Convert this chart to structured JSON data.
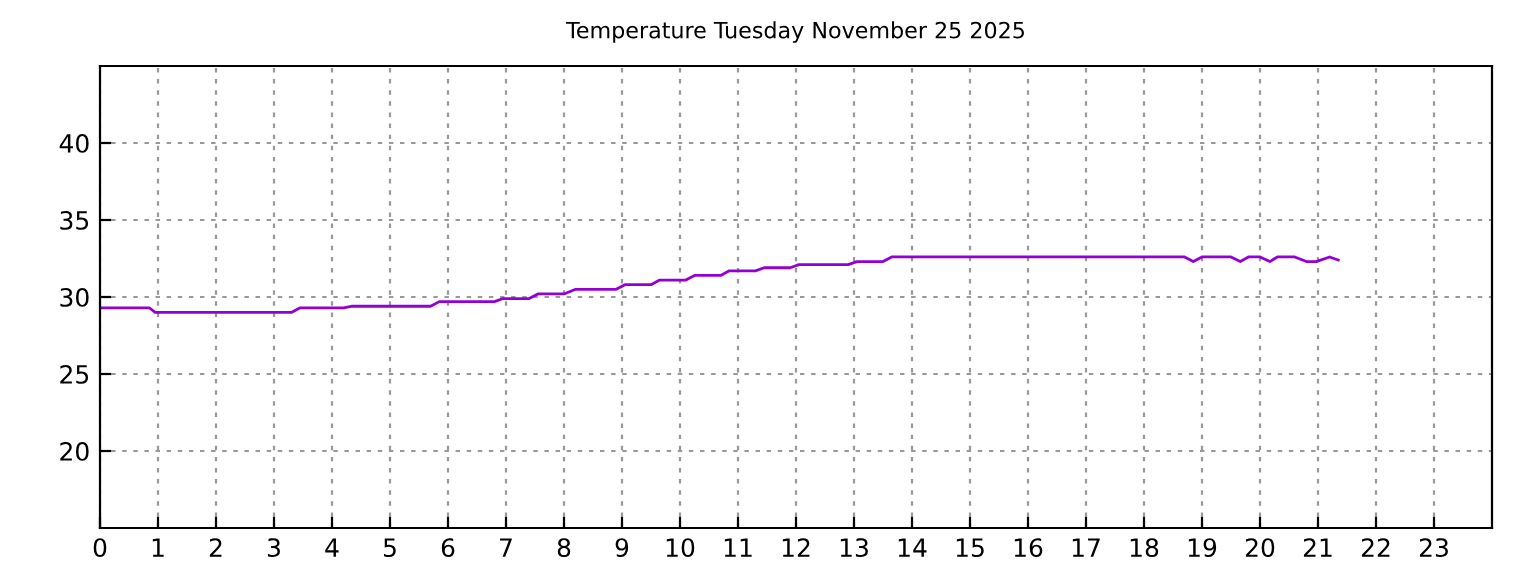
{
  "chart_data": {
    "type": "line",
    "title": "Temperature Tuesday November 25 2025",
    "series": [
      {
        "color": "#9400d3",
        "x": [
          0,
          0.85,
          0.95,
          3.3,
          3.45,
          4.2,
          4.35,
          5.7,
          5.85,
          6.8,
          6.95,
          7.4,
          7.55,
          8.0,
          8.2,
          8.9,
          9.05,
          9.5,
          9.65,
          10.1,
          10.25,
          10.7,
          10.85,
          11.3,
          11.45,
          11.9,
          12.05,
          12.9,
          13.05,
          13.5,
          13.65,
          18.7,
          18.85,
          19.0,
          19.5,
          19.66,
          19.8,
          20.0,
          20.17,
          20.3,
          20.6,
          20.8,
          20.97,
          21.2,
          21.35
        ],
        "values": [
          29.3,
          29.3,
          29.0,
          29.0,
          29.3,
          29.3,
          29.4,
          29.4,
          29.7,
          29.7,
          29.9,
          29.9,
          30.2,
          30.2,
          30.5,
          30.5,
          30.8,
          30.8,
          31.1,
          31.1,
          31.4,
          31.4,
          31.7,
          31.7,
          31.9,
          31.9,
          32.1,
          32.1,
          32.3,
          32.3,
          32.6,
          32.6,
          32.3,
          32.6,
          32.6,
          32.3,
          32.6,
          32.6,
          32.3,
          32.6,
          32.6,
          32.3,
          32.3,
          32.6,
          32.4
        ]
      }
    ],
    "xlim": [
      0,
      24
    ],
    "xticks": [
      0,
      1,
      2,
      3,
      4,
      5,
      6,
      7,
      8,
      9,
      10,
      11,
      12,
      13,
      14,
      15,
      16,
      17,
      18,
      19,
      20,
      21,
      22,
      23
    ],
    "ylim": [
      15,
      45
    ],
    "yticks": [
      20,
      25,
      30,
      35,
      40
    ],
    "grid": true,
    "line_style": "solid",
    "marker": "none"
  }
}
